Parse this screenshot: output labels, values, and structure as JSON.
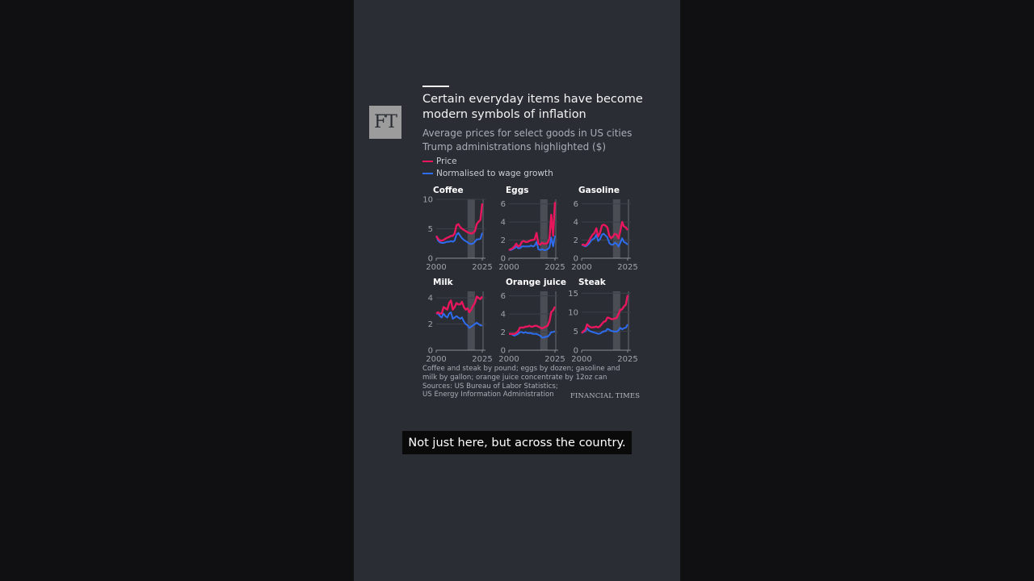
{
  "logo": "FT",
  "title": "Certain everyday items have become modern symbols of inflation",
  "subtitle_line1": "Average prices for select goods in US cities",
  "subtitle_line2": "Trump administrations highlighted ($)",
  "legend": [
    {
      "label": "Price",
      "color": "#e8175d"
    },
    {
      "label": "Normalised to wage growth",
      "color": "#2e6cf0"
    }
  ],
  "note_lines": [
    "Coffee and steak by pound; eggs by dozen; gasoline and",
    "milk by gallon; orange juice concentrate by 12oz can",
    "Sources: US Bureau of Labor Statistics;",
    "US Energy Information Administration"
  ],
  "brand": "FINANCIAL TIMES",
  "caption": "Not just here, but across the country.",
  "chart_data": [
    {
      "type": "line",
      "title": "Coffee",
      "x_ticks": [
        "2000",
        "2025"
      ],
      "y_ticks": [
        "0",
        "5",
        "10"
      ],
      "ylim": [
        0,
        10
      ],
      "xlim": [
        2000,
        2025
      ],
      "highlight": [
        [
          2017,
          2021
        ],
        [
          2025,
          2025.6
        ]
      ],
      "x": [
        2000,
        2001,
        2002,
        2003,
        2004,
        2005,
        2006,
        2007,
        2008,
        2009,
        2010,
        2011,
        2012,
        2013,
        2014,
        2015,
        2016,
        2017,
        2018,
        2019,
        2020,
        2021,
        2022,
        2023,
        2024,
        2025
      ],
      "series": [
        {
          "name": "Price",
          "values": [
            3.8,
            3.3,
            3.0,
            3.0,
            3.1,
            3.3,
            3.5,
            3.6,
            3.8,
            3.8,
            4.2,
            5.6,
            5.8,
            5.3,
            5.0,
            4.8,
            4.6,
            4.4,
            4.3,
            4.2,
            4.3,
            4.6,
            5.8,
            6.2,
            6.5,
            9.3
          ]
        },
        {
          "name": "Normalised to wage growth",
          "values": [
            3.8,
            3.0,
            2.7,
            2.6,
            2.6,
            2.7,
            2.8,
            2.8,
            2.9,
            2.8,
            3.0,
            4.0,
            4.3,
            3.8,
            3.4,
            3.1,
            2.9,
            2.7,
            2.5,
            2.4,
            2.5,
            2.8,
            3.2,
            3.2,
            3.3,
            4.3
          ]
        }
      ]
    },
    {
      "type": "line",
      "title": "Eggs",
      "x_ticks": [
        "2000",
        "2025"
      ],
      "y_ticks": [
        "0",
        "2",
        "4",
        "6"
      ],
      "ylim": [
        0,
        6.5
      ],
      "xlim": [
        2000,
        2025
      ],
      "highlight": [
        [
          2017,
          2021
        ],
        [
          2025,
          2025.6
        ]
      ],
      "x": [
        2000,
        2001,
        2002,
        2003,
        2004,
        2005,
        2006,
        2007,
        2008,
        2009,
        2010,
        2011,
        2012,
        2013,
        2014,
        2015,
        2016,
        2017,
        2018,
        2019,
        2020,
        2021,
        2022,
        2023,
        2024,
        2025
      ],
      "series": [
        {
          "name": "Price",
          "values": [
            0.9,
            1.0,
            1.1,
            1.3,
            1.6,
            1.3,
            1.4,
            1.8,
            1.9,
            1.8,
            1.8,
            1.9,
            2.0,
            2.0,
            2.1,
            2.8,
            1.6,
            1.5,
            1.7,
            1.6,
            1.6,
            1.7,
            2.2,
            4.8,
            2.5,
            6.2
          ]
        },
        {
          "name": "Normalised to wage growth",
          "values": [
            0.9,
            0.9,
            1.0,
            1.1,
            1.3,
            1.1,
            1.1,
            1.3,
            1.3,
            1.3,
            1.3,
            1.3,
            1.4,
            1.3,
            1.4,
            1.8,
            1.0,
            0.9,
            1.0,
            0.9,
            0.9,
            1.0,
            1.2,
            2.3,
            1.3,
            2.5
          ]
        }
      ]
    },
    {
      "type": "line",
      "title": "Gasoline",
      "x_ticks": [
        "2000",
        "2025"
      ],
      "y_ticks": [
        "0",
        "2",
        "4",
        "6"
      ],
      "ylim": [
        0,
        6.5
      ],
      "xlim": [
        2000,
        2025
      ],
      "highlight": [
        [
          2017,
          2021
        ],
        [
          2025,
          2025.6
        ]
      ],
      "x": [
        2000,
        2001,
        2002,
        2003,
        2004,
        2005,
        2006,
        2007,
        2008,
        2009,
        2010,
        2011,
        2012,
        2013,
        2014,
        2015,
        2016,
        2017,
        2018,
        2019,
        2020,
        2021,
        2022,
        2023,
        2024,
        2025
      ],
      "series": [
        {
          "name": "Price",
          "values": [
            1.5,
            1.5,
            1.4,
            1.6,
            1.9,
            2.3,
            2.6,
            2.8,
            3.3,
            2.4,
            2.8,
            3.6,
            3.7,
            3.6,
            3.4,
            2.5,
            2.2,
            2.4,
            2.7,
            2.6,
            2.2,
            3.0,
            4.0,
            3.5,
            3.4,
            3.1
          ]
        },
        {
          "name": "Normalised to wage growth",
          "values": [
            1.5,
            1.4,
            1.3,
            1.4,
            1.6,
            1.9,
            2.1,
            2.2,
            2.6,
            1.9,
            2.1,
            2.6,
            2.7,
            2.5,
            2.3,
            1.7,
            1.5,
            1.5,
            1.7,
            1.6,
            1.3,
            1.7,
            2.2,
            1.8,
            1.7,
            1.5
          ]
        }
      ]
    },
    {
      "type": "line",
      "title": "Milk",
      "x_ticks": [
        "2000",
        "2025"
      ],
      "y_ticks": [
        "0",
        "2",
        "4"
      ],
      "ylim": [
        0,
        4.5
      ],
      "xlim": [
        2000,
        2025
      ],
      "highlight": [
        [
          2017,
          2021
        ],
        [
          2025,
          2025.6
        ]
      ],
      "x": [
        2000,
        2001,
        2002,
        2003,
        2004,
        2005,
        2006,
        2007,
        2008,
        2009,
        2010,
        2011,
        2012,
        2013,
        2014,
        2015,
        2016,
        2017,
        2018,
        2019,
        2020,
        2021,
        2022,
        2023,
        2024,
        2025
      ],
      "series": [
        {
          "name": "Price",
          "values": [
            2.8,
            2.9,
            2.8,
            2.8,
            3.3,
            3.2,
            3.1,
            3.6,
            3.8,
            3.1,
            3.3,
            3.6,
            3.5,
            3.5,
            3.7,
            3.3,
            3.1,
            3.2,
            2.9,
            3.1,
            3.4,
            3.6,
            4.1,
            4.0,
            3.9,
            4.1
          ]
        },
        {
          "name": "Normalised to wage growth",
          "values": [
            2.8,
            2.8,
            2.6,
            2.5,
            2.8,
            2.6,
            2.5,
            2.8,
            2.9,
            2.4,
            2.5,
            2.6,
            2.5,
            2.4,
            2.5,
            2.2,
            2.0,
            1.9,
            1.7,
            1.8,
            1.9,
            2.0,
            2.1,
            2.0,
            1.9,
            1.9
          ]
        }
      ]
    },
    {
      "type": "line",
      "title": "Orange juice",
      "x_ticks": [
        "2000",
        "2025"
      ],
      "y_ticks": [
        "0",
        "2",
        "4",
        "6"
      ],
      "ylim": [
        0,
        6.5
      ],
      "xlim": [
        2000,
        2025
      ],
      "highlight": [
        [
          2017,
          2021
        ],
        [
          2025,
          2025.6
        ]
      ],
      "x": [
        2000,
        2001,
        2002,
        2003,
        2004,
        2005,
        2006,
        2007,
        2008,
        2009,
        2010,
        2011,
        2012,
        2013,
        2014,
        2015,
        2016,
        2017,
        2018,
        2019,
        2020,
        2021,
        2022,
        2023,
        2024,
        2025
      ],
      "series": [
        {
          "name": "Price",
          "values": [
            1.8,
            1.8,
            1.8,
            1.8,
            1.9,
            2.1,
            2.5,
            2.5,
            2.5,
            2.6,
            2.6,
            2.7,
            2.6,
            2.6,
            2.7,
            2.7,
            2.6,
            2.5,
            2.4,
            2.5,
            2.6,
            2.7,
            3.2,
            4.2,
            4.4,
            4.8
          ]
        },
        {
          "name": "Normalised to wage growth",
          "values": [
            1.8,
            1.8,
            1.7,
            1.6,
            1.7,
            1.8,
            2.0,
            2.0,
            1.9,
            2.0,
            1.9,
            1.9,
            1.9,
            1.8,
            1.8,
            1.8,
            1.7,
            1.6,
            1.4,
            1.4,
            1.5,
            1.5,
            1.7,
            2.0,
            2.0,
            2.1
          ]
        }
      ]
    },
    {
      "type": "line",
      "title": "Steak",
      "x_ticks": [
        "2000",
        "2025"
      ],
      "y_ticks": [
        "0",
        "5",
        "10",
        "15"
      ],
      "ylim": [
        0,
        15.5
      ],
      "xlim": [
        2000,
        2025
      ],
      "highlight": [
        [
          2017,
          2021
        ],
        [
          2025,
          2025.6
        ]
      ],
      "x": [
        2000,
        2001,
        2002,
        2003,
        2004,
        2005,
        2006,
        2007,
        2008,
        2009,
        2010,
        2011,
        2012,
        2013,
        2014,
        2015,
        2016,
        2017,
        2018,
        2019,
        2020,
        2021,
        2022,
        2023,
        2024,
        2025
      ],
      "series": [
        {
          "name": "Price",
          "values": [
            4.5,
            5.0,
            5.4,
            6.8,
            6.3,
            6.0,
            6.0,
            6.1,
            6.2,
            6.0,
            6.3,
            6.9,
            7.5,
            7.6,
            8.6,
            8.5,
            8.2,
            8.2,
            8.3,
            8.5,
            9.5,
            10.6,
            10.8,
            11.5,
            12.0,
            14.5
          ]
        },
        {
          "name": "Normalised to wage growth",
          "values": [
            4.5,
            4.8,
            5.0,
            5.8,
            5.2,
            4.9,
            4.8,
            4.6,
            4.5,
            4.3,
            4.4,
            4.7,
            5.0,
            5.0,
            5.6,
            5.4,
            5.1,
            5.0,
            4.9,
            4.9,
            5.2,
            5.9,
            5.5,
            5.8,
            5.9,
            6.8
          ]
        }
      ]
    }
  ]
}
